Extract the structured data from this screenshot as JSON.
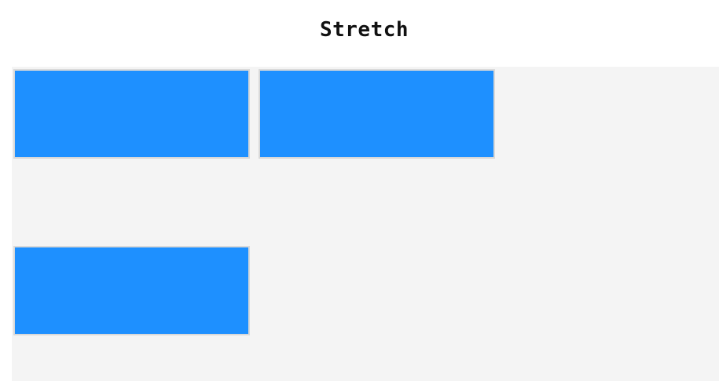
{
  "header": {
    "title": "Stretch"
  },
  "stage": {
    "background": "#f4f4f4",
    "items": [
      {
        "color": "#1e90ff",
        "border": "#d9d9d9"
      },
      {
        "color": "#1e90ff",
        "border": "#d9d9d9"
      },
      {
        "color": "#1e90ff",
        "border": "#d9d9d9"
      }
    ]
  }
}
